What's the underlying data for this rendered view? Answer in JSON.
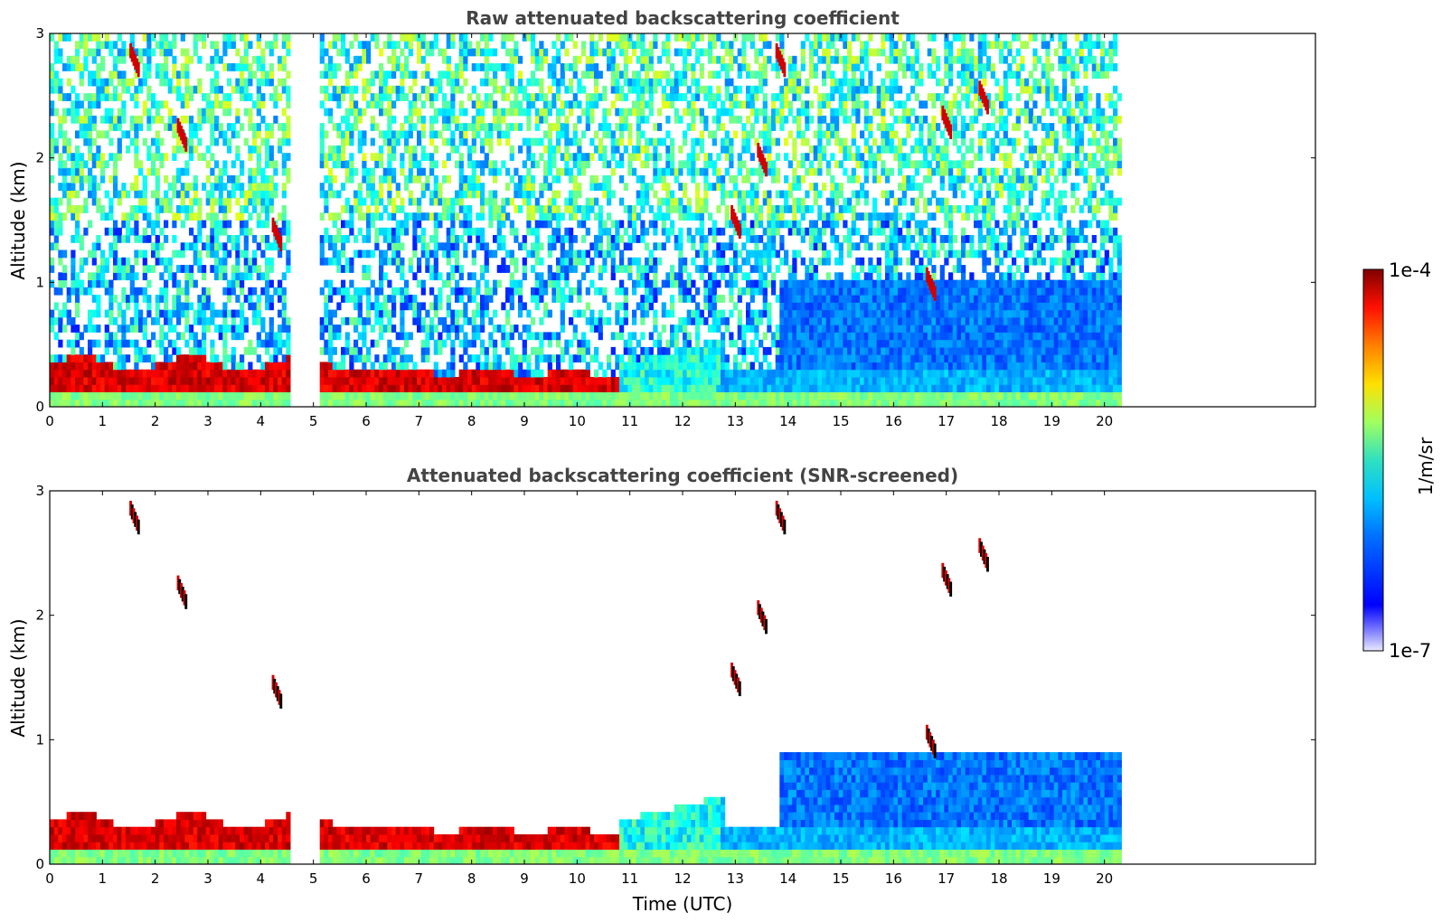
{
  "chart_data": [
    {
      "type": "heatmap",
      "title": "Raw attenuated backscattering coefficient",
      "xlabel": "",
      "ylabel": "Altitude (km)",
      "xlim": [
        0,
        24
      ],
      "ylim": [
        0,
        3
      ],
      "xticks": [
        "0",
        "1",
        "2",
        "3",
        "4",
        "5",
        "6",
        "7",
        "8",
        "9",
        "10",
        "11",
        "12",
        "13",
        "14",
        "15",
        "16",
        "17",
        "18",
        "19",
        "20"
      ],
      "yticks": [
        "0",
        "1",
        "2",
        "3"
      ],
      "data_gap_hours": [
        4.6,
        5.05
      ],
      "data_end_hour": 20.3,
      "description_values": {
        "boundary_layer_top_km": {
          "0-4.6h": 0.35,
          "5-10.8h": 0.25,
          "11-12.7h": 0.35
        },
        "cloud_events": [
          {
            "hour": 1.6,
            "altitude_km": 2.8
          },
          {
            "hour": 2.5,
            "altitude_km": 2.2
          },
          {
            "hour": 4.3,
            "altitude_km": 1.4
          },
          {
            "hour": 13.0,
            "altitude_km": 1.5
          },
          {
            "hour": 13.5,
            "altitude_km": 2.0
          },
          {
            "hour": 13.85,
            "altitude_km": 2.8
          },
          {
            "hour": 16.7,
            "altitude_km": 1.0
          },
          {
            "hour": 17.0,
            "altitude_km": 2.3
          },
          {
            "hour": 17.7,
            "altitude_km": 2.5
          }
        ]
      }
    },
    {
      "type": "heatmap",
      "title": "Attenuated backscattering coefficient (SNR-screened)",
      "xlabel": "Time (UTC)",
      "ylabel": "Altitude (km)",
      "xlim": [
        0,
        24
      ],
      "ylim": [
        0,
        3
      ],
      "xticks": [
        "0",
        "1",
        "2",
        "3",
        "4",
        "5",
        "6",
        "7",
        "8",
        "9",
        "10",
        "11",
        "12",
        "13",
        "14",
        "15",
        "16",
        "17",
        "18",
        "19",
        "20"
      ],
      "yticks": [
        "0",
        "1",
        "2",
        "3"
      ],
      "data_gap_hours": [
        4.6,
        5.05
      ],
      "data_end_hour": 20.3
    }
  ],
  "colorbar": {
    "label": "1/m/sr",
    "max_label": "1e-4",
    "min_label": "1e-7",
    "scale": "log",
    "colormap": "jet"
  }
}
